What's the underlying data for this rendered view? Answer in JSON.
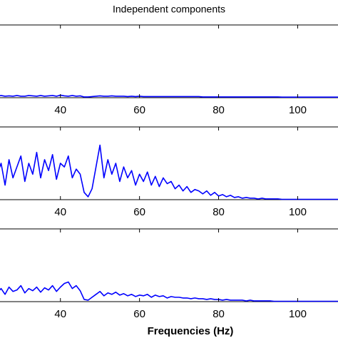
{
  "chart_data": [
    {
      "type": "line",
      "title": "Independent components",
      "x": [
        24,
        25,
        26,
        27,
        28,
        29,
        30,
        31,
        32,
        33,
        34,
        35,
        36,
        37,
        38,
        39,
        40,
        41,
        42,
        43,
        44,
        45,
        46,
        47,
        48,
        49,
        50,
        51,
        52,
        53,
        54,
        55,
        56,
        57,
        58,
        59,
        60,
        61,
        62,
        63,
        64,
        65,
        66,
        67,
        68,
        69,
        70,
        71,
        72,
        73,
        74,
        75,
        76,
        77,
        78,
        79,
        80,
        81,
        82,
        83,
        84,
        85,
        86,
        87,
        88,
        89,
        90,
        91,
        92,
        93,
        94,
        95,
        96,
        97,
        98,
        99,
        100,
        101,
        102,
        103,
        104,
        105,
        106,
        107,
        108,
        109,
        110,
        111,
        112
      ],
      "series": [
        {
          "color": "#0000ff",
          "values": [
            0.02,
            0.03,
            0.02,
            0.025,
            0.02,
            0.03,
            0.02,
            0.02,
            0.03,
            0.025,
            0.02,
            0.03,
            0.02,
            0.025,
            0.03,
            0.02,
            0.035,
            0.025,
            0.02,
            0.03,
            0.02,
            0.025,
            0.01,
            0.01,
            0.015,
            0.02,
            0.025,
            0.02,
            0.02,
            0.025,
            0.02,
            0.02,
            0.02,
            0.015,
            0.02,
            0.015,
            0.02,
            0.015,
            0.015,
            0.015,
            0.015,
            0.015,
            0.015,
            0.015,
            0.015,
            0.015,
            0.015,
            0.015,
            0.015,
            0.015,
            0.015,
            0.015,
            0.01,
            0.01,
            0.01,
            0.01,
            0.01,
            0.01,
            0.01,
            0.01,
            0.01,
            0.01,
            0.01,
            0.01,
            0.01,
            0.01,
            0.01,
            0.01,
            0.01,
            0.01,
            0.01,
            0.01,
            0.008,
            0.008,
            0.008,
            0.008,
            0.008,
            0.008,
            0.008,
            0.008,
            0.008,
            0.008,
            0.008,
            0.008,
            0.008,
            0.008,
            0.008,
            0.008,
            0.008
          ]
        }
      ],
      "xlim": [
        24,
        112
      ],
      "xticks": [
        40,
        60,
        80,
        100
      ],
      "ylim": [
        0,
        1
      ]
    },
    {
      "type": "line",
      "x": [
        24,
        25,
        26,
        27,
        28,
        29,
        30,
        31,
        32,
        33,
        34,
        35,
        36,
        37,
        38,
        39,
        40,
        41,
        42,
        43,
        44,
        45,
        46,
        47,
        48,
        49,
        50,
        51,
        52,
        53,
        54,
        55,
        56,
        57,
        58,
        59,
        60,
        61,
        62,
        63,
        64,
        65,
        66,
        67,
        68,
        69,
        70,
        71,
        72,
        73,
        74,
        75,
        76,
        77,
        78,
        79,
        80,
        81,
        82,
        83,
        84,
        85,
        86,
        87,
        88,
        89,
        90,
        91,
        92,
        93,
        94,
        95,
        96,
        97,
        98,
        99,
        100,
        101,
        102,
        103,
        104,
        105,
        106,
        107,
        108,
        109,
        110,
        111,
        112
      ],
      "series": [
        {
          "color": "#0000ff",
          "values": [
            0.35,
            0.5,
            0.2,
            0.55,
            0.3,
            0.45,
            0.6,
            0.25,
            0.5,
            0.35,
            0.65,
            0.3,
            0.55,
            0.4,
            0.62,
            0.28,
            0.5,
            0.45,
            0.6,
            0.3,
            0.42,
            0.35,
            0.1,
            0.04,
            0.15,
            0.45,
            0.75,
            0.3,
            0.55,
            0.35,
            0.5,
            0.25,
            0.45,
            0.3,
            0.4,
            0.2,
            0.35,
            0.25,
            0.38,
            0.2,
            0.32,
            0.18,
            0.3,
            0.22,
            0.25,
            0.15,
            0.2,
            0.12,
            0.18,
            0.1,
            0.14,
            0.12,
            0.08,
            0.12,
            0.06,
            0.1,
            0.05,
            0.07,
            0.04,
            0.06,
            0.03,
            0.04,
            0.02,
            0.03,
            0.02,
            0.02,
            0.01,
            0.02,
            0.01,
            0.01,
            0.01,
            0.01,
            0.005,
            0.005,
            0.005,
            0.005,
            0.005,
            0.005,
            0.005,
            0.005,
            0.005,
            0.005,
            0.005,
            0.005,
            0.005,
            0.005,
            0.005,
            0.005,
            0.005
          ]
        }
      ],
      "xlim": [
        24,
        112
      ],
      "xticks": [
        40,
        60,
        80,
        100
      ],
      "ylim": [
        0,
        1
      ]
    },
    {
      "type": "line",
      "xlabel": "Frequencies (Hz)",
      "x": [
        24,
        25,
        26,
        27,
        28,
        29,
        30,
        31,
        32,
        33,
        34,
        35,
        36,
        37,
        38,
        39,
        40,
        41,
        42,
        43,
        44,
        45,
        46,
        47,
        48,
        49,
        50,
        51,
        52,
        53,
        54,
        55,
        56,
        57,
        58,
        59,
        60,
        61,
        62,
        63,
        64,
        65,
        66,
        67,
        68,
        69,
        70,
        71,
        72,
        73,
        74,
        75,
        76,
        77,
        78,
        79,
        80,
        81,
        82,
        83,
        84,
        85,
        86,
        87,
        88,
        89,
        90,
        91,
        92,
        93,
        94,
        95,
        96,
        97,
        98,
        99,
        100,
        101,
        102,
        103,
        104,
        105,
        106,
        107,
        108,
        109,
        110,
        111,
        112
      ],
      "series": [
        {
          "color": "#0000ff",
          "values": [
            0.12,
            0.18,
            0.1,
            0.2,
            0.14,
            0.16,
            0.22,
            0.12,
            0.18,
            0.15,
            0.2,
            0.13,
            0.19,
            0.16,
            0.22,
            0.14,
            0.2,
            0.25,
            0.27,
            0.18,
            0.22,
            0.15,
            0.03,
            0.02,
            0.06,
            0.1,
            0.14,
            0.08,
            0.12,
            0.1,
            0.13,
            0.09,
            0.11,
            0.08,
            0.1,
            0.07,
            0.09,
            0.08,
            0.1,
            0.06,
            0.09,
            0.07,
            0.08,
            0.05,
            0.07,
            0.06,
            0.06,
            0.05,
            0.05,
            0.04,
            0.05,
            0.04,
            0.04,
            0.03,
            0.04,
            0.03,
            0.03,
            0.02,
            0.03,
            0.02,
            0.02,
            0.02,
            0.02,
            0.01,
            0.02,
            0.01,
            0.01,
            0.01,
            0.01,
            0.01,
            0.005,
            0.005,
            0.005,
            0.005,
            0.005,
            0.005,
            0.005,
            0.005,
            0.005,
            0.005,
            0.005,
            0.005,
            0.005,
            0.005,
            0.005,
            0.005,
            0.005,
            0.005,
            0.005
          ]
        }
      ],
      "xlim": [
        24,
        112
      ],
      "xticks": [
        40,
        60,
        80,
        100
      ],
      "ylim": [
        0,
        1
      ]
    }
  ]
}
